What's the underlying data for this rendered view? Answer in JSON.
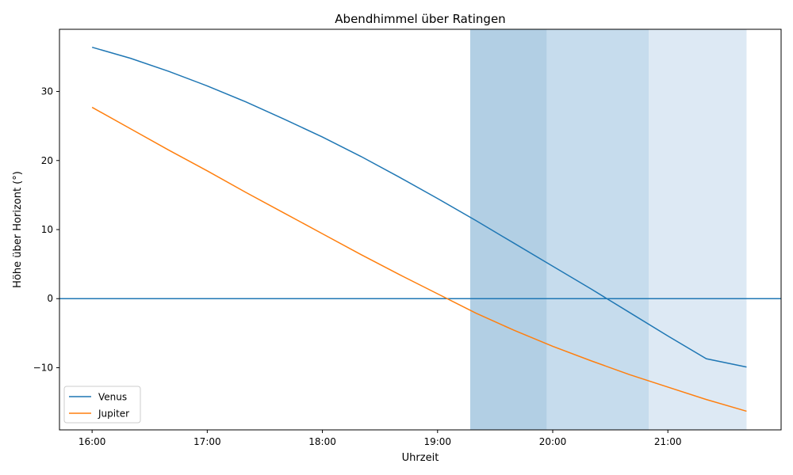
{
  "chart_data": {
    "type": "line",
    "title": "Abendhimmel über Ratingen",
    "xlabel": "Uhrzeit",
    "ylabel": "Höhe über Horizont (°)",
    "xlim": [
      "15:43",
      "21:59"
    ],
    "ylim": [
      -19,
      39
    ],
    "x_ticks": [
      "16:00",
      "17:00",
      "18:00",
      "19:00",
      "20:00",
      "21:00"
    ],
    "y_ticks": [
      -10,
      0,
      10,
      20,
      30
    ],
    "y_tick_labels": [
      "−10",
      "0",
      "10",
      "20",
      "30"
    ],
    "horizon_line": 0,
    "twilight_bands": [
      {
        "start": "19:17",
        "end": "19:57",
        "color": "#b2cfe4"
      },
      {
        "start": "19:57",
        "end": "20:50",
        "color": "#c6dced"
      },
      {
        "start": "20:50",
        "end": "21:41",
        "color": "#dde9f4"
      }
    ],
    "series": [
      {
        "name": "Venus",
        "color": "#1f77b4",
        "x": [
          "16:00",
          "16:20",
          "16:40",
          "17:00",
          "17:20",
          "17:40",
          "18:00",
          "18:20",
          "18:40",
          "19:00",
          "19:20",
          "19:40",
          "20:00",
          "20:20",
          "20:40",
          "21:00",
          "21:20",
          "21:41"
        ],
        "y": [
          36.4,
          34.8,
          32.9,
          30.8,
          28.5,
          26.0,
          23.4,
          20.6,
          17.6,
          14.5,
          11.3,
          8.0,
          4.7,
          1.4,
          -2.0,
          -5.4,
          -8.7,
          -9.9
        ]
      },
      {
        "name": "Jupiter",
        "color": "#ff7f0e",
        "x": [
          "16:00",
          "16:20",
          "16:40",
          "17:00",
          "17:20",
          "17:40",
          "18:00",
          "18:20",
          "18:40",
          "19:00",
          "19:20",
          "19:40",
          "20:00",
          "20:20",
          "20:40",
          "21:00",
          "21:20",
          "21:41"
        ],
        "y": [
          27.7,
          24.6,
          21.5,
          18.5,
          15.4,
          12.4,
          9.4,
          6.4,
          3.5,
          0.7,
          -2.1,
          -4.6,
          -6.9,
          -9.0,
          -11.0,
          -12.8,
          -14.6,
          -16.3
        ]
      }
    ],
    "legend": {
      "placement": "bottom-left",
      "entries": [
        "Venus",
        "Jupiter"
      ]
    }
  }
}
